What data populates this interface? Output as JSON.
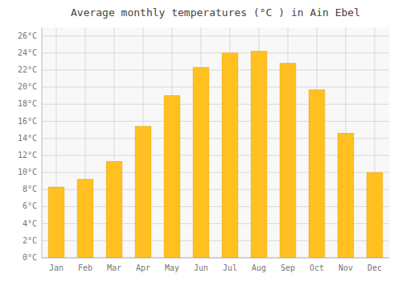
{
  "chart_data": {
    "type": "bar",
    "title": "Average monthly temperatures (°C ) in Ain Ebel",
    "categories": [
      "Jan",
      "Feb",
      "Mar",
      "Apr",
      "May",
      "Jun",
      "Jul",
      "Aug",
      "Sep",
      "Oct",
      "Nov",
      "Dec"
    ],
    "values": [
      8.3,
      9.2,
      11.3,
      15.4,
      19.0,
      22.3,
      24.0,
      24.2,
      22.8,
      19.7,
      14.6,
      10.0
    ],
    "color": "#FFC020",
    "ylim": [
      0,
      27
    ],
    "yticks": [
      {
        "value": 0,
        "label": "0°C"
      },
      {
        "value": 2,
        "label": "2°C"
      },
      {
        "value": 4,
        "label": "4°C"
      },
      {
        "value": 6,
        "label": "6°C"
      },
      {
        "value": 8,
        "label": "8°C"
      },
      {
        "value": 10,
        "label": "10°C"
      },
      {
        "value": 12,
        "label": "12°C"
      },
      {
        "value": 14,
        "label": "14°C"
      },
      {
        "value": 16,
        "label": "16°C"
      },
      {
        "value": 18,
        "label": "18°C"
      },
      {
        "value": 20,
        "label": "20°C"
      },
      {
        "value": 22,
        "label": "22°C"
      },
      {
        "value": 24,
        "label": "24°C"
      },
      {
        "value": 26,
        "label": "26°C"
      }
    ],
    "grid": true
  }
}
